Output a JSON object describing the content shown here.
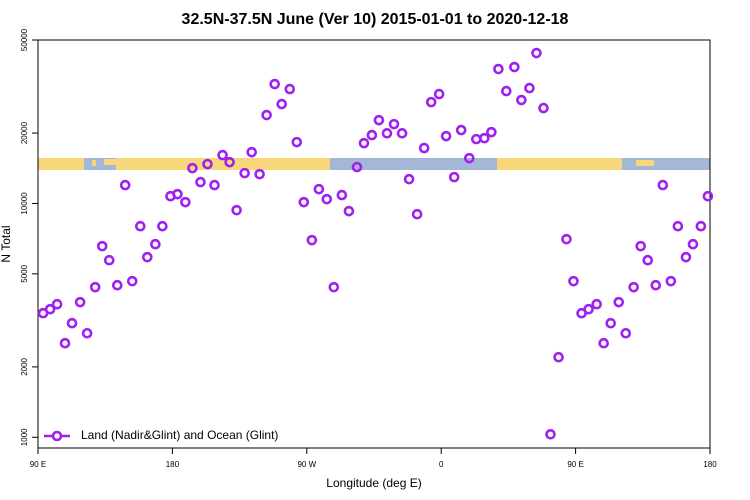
{
  "chart_data": {
    "type": "scatter",
    "title": "32.5N-37.5N June (Ver 10)   2015-01-01 to 2020-12-18",
    "x_label": "Longitude (deg E)",
    "y_label": "N Total",
    "ylog": true,
    "legend": "bottom-left",
    "xlim": [
      90,
      540
    ],
    "ylim": [
      900,
      50000
    ],
    "xticks": [
      {
        "value": 90,
        "label": "90 E"
      },
      180,
      {
        "value": 270,
        "label": "90 W"
      },
      {
        "value": 360,
        "label": "0"
      },
      {
        "value": 450,
        "label": "90 E"
      },
      {
        "value": 540,
        "label": "180"
      }
    ],
    "yticks": [
      1000,
      2000,
      5000,
      10000,
      20000,
      50000
    ],
    "series": [
      {
        "name": "Land (Nadir&Glint) and Ocean (Glint)",
        "color": "#a020f0",
        "x": [
          93.4,
          98.1,
          102.8,
          108.1,
          112.8,
          118.2,
          122.9,
          128.3,
          133.0,
          137.7,
          143.1,
          148.4,
          153.1,
          158.5,
          163.2,
          168.6,
          173.3,
          178.7,
          183.4,
          188.7,
          193.4,
          198.8,
          203.5,
          208.2,
          213.6,
          218.3,
          223.0,
          228.4,
          233.1,
          238.4,
          243.1,
          248.5,
          253.2,
          258.6,
          263.3,
          268.0,
          273.4,
          278.1,
          283.4,
          288.1,
          293.5,
          298.2,
          303.6,
          308.3,
          313.6,
          318.3,
          323.7,
          328.4,
          333.8,
          338.5,
          343.9,
          348.6,
          353.3,
          358.6,
          363.3,
          368.7,
          373.4,
          378.8,
          383.5,
          388.9,
          393.6,
          398.3,
          403.6,
          409.0,
          413.7,
          419.1,
          423.8,
          428.5,
          433.2,
          438.6,
          443.9,
          448.6,
          454.0,
          458.7,
          464.1,
          468.8,
          473.5,
          478.9,
          483.6,
          488.9,
          493.6,
          498.3,
          503.7,
          508.4,
          513.8,
          518.5,
          523.9,
          528.6,
          533.9,
          538.6
        ],
        "values": [
          3394,
          3529,
          3708,
          2525,
          3075,
          3784,
          2786,
          4385,
          6567,
          5718,
          4470,
          11980,
          4652,
          7993,
          5893,
          6694,
          7993,
          10740,
          10960,
          10130,
          14160,
          12340,
          14730,
          11980,
          16100,
          15020,
          9360,
          13480,
          16570,
          13340,
          23880,
          32390,
          26600,
          30840,
          18290,
          10130,
          6965,
          11510,
          10430,
          4385,
          10860,
          9270,
          14300,
          18110,
          19600,
          22710,
          19950,
          21840,
          19950,
          12700,
          8995,
          17250,
          27120,
          29360,
          19400,
          12960,
          20590,
          15620,
          18840,
          19020,
          20180,
          37560,
          30240,
          38310,
          27690,
          31140,
          43970,
          25570,
          1030,
          2200,
          7035,
          4652,
          3394,
          3529,
          3708,
          2525,
          3075,
          3784,
          2786,
          4385,
          6567,
          5718,
          4470,
          11980,
          4652,
          7993,
          5893,
          6694,
          7993,
          10740
        ]
      }
    ]
  }
}
